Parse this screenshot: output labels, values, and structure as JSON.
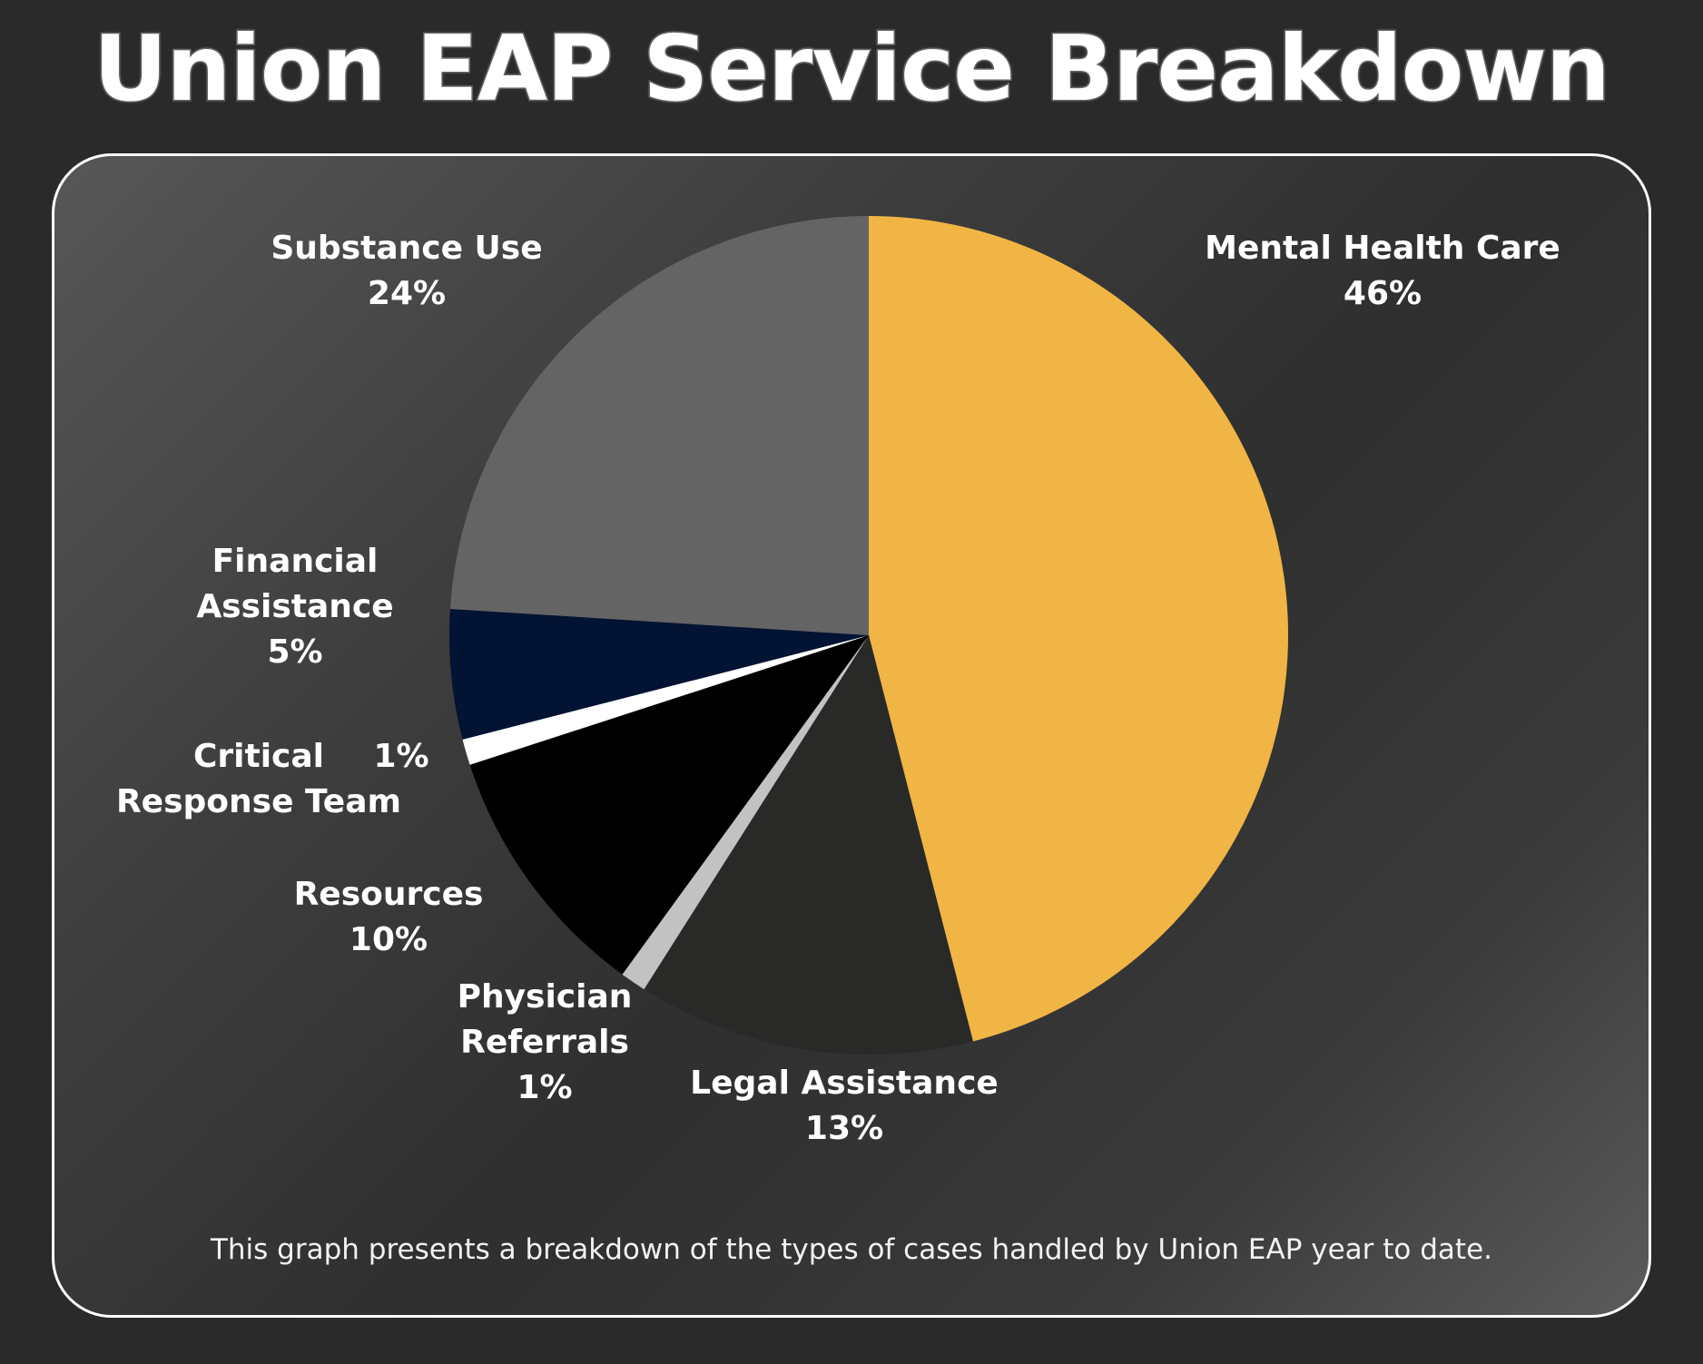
{
  "title": "Union EAP Service Breakdown",
  "caption": "This graph presents a breakdown of the types of cases handled by Union EAP year to date.",
  "colors": {
    "background": "#2a2a2a",
    "panel_border": "#ffffff",
    "label_text": "#ffffff"
  },
  "chart_data": {
    "type": "pie",
    "title": "Union EAP Service Breakdown",
    "start_angle_deg": 0,
    "direction": "clockwise",
    "slices": [
      {
        "key": "mental",
        "label_lines": [
          "Mental Health Care"
        ],
        "value_label": "46%",
        "value": 46,
        "color": "#f0b545"
      },
      {
        "key": "legal",
        "label_lines": [
          "Legal Assistance"
        ],
        "value_label": "13%",
        "value": 13,
        "color": "#292927"
      },
      {
        "key": "physician",
        "label_lines": [
          "Physician",
          "Referrals"
        ],
        "value_label": "1%",
        "value": 1,
        "color": "#c2c2c2"
      },
      {
        "key": "resources",
        "label_lines": [
          "Resources"
        ],
        "value_label": "10%",
        "value": 10,
        "color": "#000000"
      },
      {
        "key": "crt",
        "label_lines": [
          "Critical",
          "Response Team"
        ],
        "value_label": "1%",
        "value": 1,
        "color": "#ffffff"
      },
      {
        "key": "financial",
        "label_lines": [
          "Financial",
          "Assistance"
        ],
        "value_label": "5%",
        "value": 5,
        "color": "#021333"
      },
      {
        "key": "substance",
        "label_lines": [
          "Substance Use"
        ],
        "value_label": "24%",
        "value": 24,
        "color": "#646464"
      }
    ]
  }
}
